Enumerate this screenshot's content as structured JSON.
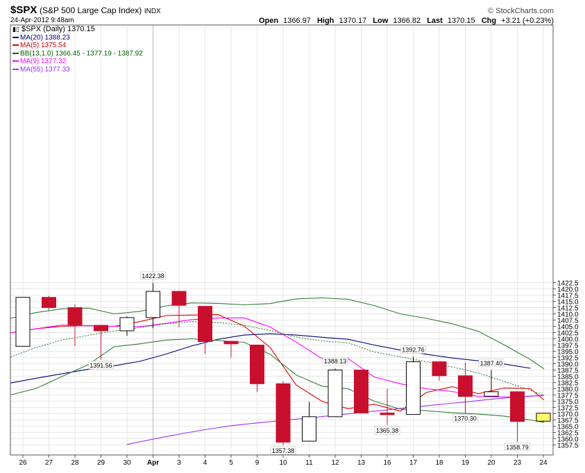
{
  "header": {
    "symbol": "$SPX",
    "name": "(S&P 500 Large Cap Index)",
    "exchange": "INDX",
    "date": "24-Apr-2012 9:48am",
    "brand": "© StockCharts.com",
    "open_label": "Open",
    "open": "1366.97",
    "high_label": "High",
    "high": "1370.17",
    "low_label": "Low",
    "low": "1366.82",
    "last_label": "Last",
    "last": "1370.15",
    "chg_label": "Chg",
    "chg": "+3.21 (+0.23%)"
  },
  "legend": {
    "main": "$SPX (Daily) 1370.15",
    "items": [
      {
        "text": "MA(20) 1388.23",
        "color": "#000080"
      },
      {
        "text": "MA(5) 1375.54",
        "color": "#dd0000"
      },
      {
        "text": "BB(13,1.0) 1366.45 - 1377.19 - 1387.92",
        "color": "#006400"
      },
      {
        "text": "MA(9) 1377.32",
        "color": "#ff00ff"
      },
      {
        "text": "MA(55) 1377.33",
        "color": "#9b30ff"
      }
    ]
  },
  "chart_data": {
    "type": "candlestick",
    "ylim": [
      1355,
      1425
    ],
    "y_ticks": [
      1357.5,
      1360,
      1362.5,
      1365,
      1367.5,
      1370,
      1372.5,
      1375,
      1377.5,
      1380,
      1382.5,
      1385,
      1387.5,
      1390,
      1392.5,
      1395,
      1397.5,
      1400,
      1402.5,
      1405,
      1407.5,
      1410,
      1412.5,
      1415,
      1417.5,
      1420,
      1422.5
    ],
    "x_labels": [
      "26",
      "27",
      "28",
      "29",
      "30",
      "Apr",
      "3",
      "4",
      "5",
      "9",
      "10",
      "11",
      "12",
      "13",
      "16",
      "17",
      "18",
      "19",
      "20",
      "23",
      "24"
    ],
    "candles": [
      {
        "o": 1397.0,
        "h": 1416.6,
        "l": 1397.0,
        "c": 1416.6
      },
      {
        "o": 1416.6,
        "h": 1417.2,
        "l": 1411.5,
        "c": 1412.5
      },
      {
        "o": 1412.5,
        "h": 1413.7,
        "l": 1397.1,
        "c": 1405.5
      },
      {
        "o": 1405.4,
        "h": 1405.4,
        "l": 1391.6,
        "c": 1403.2
      },
      {
        "o": 1403.2,
        "h": 1409.0,
        "l": 1401.2,
        "c": 1408.5
      },
      {
        "o": 1408.5,
        "h": 1422.4,
        "l": 1404.2,
        "c": 1419.0
      },
      {
        "o": 1419.0,
        "h": 1419.0,
        "l": 1404.6,
        "c": 1413.4
      },
      {
        "o": 1413.0,
        "h": 1413.0,
        "l": 1394.0,
        "c": 1398.9
      },
      {
        "o": 1399.0,
        "h": 1399.0,
        "l": 1392.5,
        "c": 1398.0
      },
      {
        "o": 1397.5,
        "h": 1397.5,
        "l": 1378.6,
        "c": 1382.0
      },
      {
        "o": 1382.0,
        "h": 1383.0,
        "l": 1357.4,
        "c": 1358.6
      },
      {
        "o": 1359.0,
        "h": 1374.7,
        "l": 1359.0,
        "c": 1368.8
      },
      {
        "o": 1368.8,
        "h": 1388.1,
        "l": 1368.8,
        "c": 1387.5
      },
      {
        "o": 1387.5,
        "h": 1387.5,
        "l": 1370.1,
        "c": 1370.3
      },
      {
        "o": 1370.3,
        "h": 1380.0,
        "l": 1365.4,
        "c": 1369.6
      },
      {
        "o": 1369.7,
        "h": 1392.8,
        "l": 1369.7,
        "c": 1390.8
      },
      {
        "o": 1390.8,
        "h": 1390.8,
        "l": 1383.2,
        "c": 1385.2
      },
      {
        "o": 1385.2,
        "h": 1390.4,
        "l": 1370.3,
        "c": 1376.9
      },
      {
        "o": 1377.0,
        "h": 1387.4,
        "l": 1377.0,
        "c": 1378.8
      },
      {
        "o": 1378.8,
        "h": 1378.8,
        "l": 1358.8,
        "c": 1366.9
      },
      {
        "o": 1367.0,
        "h": 1370.2,
        "l": 1366.8,
        "c": 1370.2
      }
    ],
    "price_labels": [
      {
        "text": "1422.38",
        "i": 5,
        "v": 1422.38
      },
      {
        "text": "1391.56",
        "i": 3,
        "v": 1391.56
      },
      {
        "text": "1357.38",
        "i": 10,
        "v": 1357.38
      },
      {
        "text": "1388.13",
        "i": 12,
        "v": 1388.13
      },
      {
        "text": "1365.38",
        "i": 14,
        "v": 1365.38
      },
      {
        "text": "1392.76",
        "i": 15,
        "v": 1392.76
      },
      {
        "text": "1370.30",
        "i": 17,
        "v": 1370.3
      },
      {
        "text": "1387.40",
        "i": 18,
        "v": 1387.4
      },
      {
        "text": "1358.79",
        "i": 19,
        "v": 1358.79
      }
    ],
    "series": [
      {
        "name": "MA(20)",
        "color": "#000080",
        "start": -0.5,
        "values": [
          1382.3,
          1384.2,
          1386.0,
          1387.8,
          1389.2,
          1391.0,
          1393.9,
          1397.2,
          1399.8,
          1401.5,
          1402.0,
          1401.5,
          1400.6,
          1399.8,
          1397.5,
          1395.5,
          1393.8,
          1392.3,
          1391.2,
          1389.9,
          1388.2
        ]
      },
      {
        "name": "MA(5)",
        "color": "#dd0000",
        "start": -0.5,
        "values": [
          1402.4,
          1404.0,
          1405.0,
          1405.3,
          1405.0,
          1406.9,
          1409.3,
          1409.5,
          1409.7,
          1405.1,
          1396.5,
          1381.5,
          1374.9,
          1372.0,
          1373.8,
          1371.0,
          1378.5,
          1380.8,
          1378.0,
          1380.3,
          1380.0,
          1375.5
        ]
      },
      {
        "name": "MA(9)",
        "color": "#ff00ff",
        "start": -0.5,
        "values": [
          1402.4,
          1404.0,
          1405.5,
          1405.2,
          1405.0,
          1404.9,
          1406.2,
          1407.7,
          1408.3,
          1408.4,
          1404.7,
          1398.7,
          1392.0,
          1392.0,
          1384.7,
          1382.0,
          1380.0,
          1378.9,
          1376.9,
          1376.7,
          1377.0,
          1377.3
        ]
      },
      {
        "name": "MA(55)",
        "color": "#9b30ff",
        "start": 4,
        "values": [
          1357.7,
          1359.8,
          1361.8,
          1363.6,
          1365.2,
          1366.3,
          1367.3,
          1368.3,
          1369.4,
          1370.5,
          1371.5,
          1372.6,
          1373.7,
          1374.7,
          1375.8,
          1376.7,
          1377.3
        ]
      },
      {
        "name": "BB upper",
        "color": "#2e7d32",
        "start": -0.5,
        "values": [
          1408.2,
          1410.5,
          1412.0,
          1412.3,
          1410.0,
          1411.0,
          1413.2,
          1414.4,
          1414.2,
          1413.6,
          1414.1,
          1416.0,
          1416.4,
          1415.8,
          1413.3,
          1410.0,
          1408.2,
          1406.0,
          1403.0,
          1397.5,
          1391.7,
          1387.9
        ]
      },
      {
        "name": "BB middle",
        "color": "#2e7d32",
        "dashed": true,
        "start": -0.5,
        "values": [
          1392.7,
          1396.5,
          1399.5,
          1401.4,
          1403.1,
          1404.5,
          1406.0,
          1406.9,
          1406.5,
          1405.4,
          1403.4,
          1400.7,
          1399.1,
          1398.4,
          1394.7,
          1392.8,
          1390.8,
          1388.7,
          1386.3,
          1382.9,
          1379.4,
          1377.2
        ]
      },
      {
        "name": "BB lower",
        "color": "#2e7d32",
        "start": -0.5,
        "values": [
          1377.5,
          1380.1,
          1384.9,
          1389.6,
          1396.8,
          1398.0,
          1399.5,
          1400.0,
          1399.3,
          1398.6,
          1393.8,
          1385.5,
          1381.0,
          1380.0,
          1375.0,
          1371.8,
          1371.2,
          1370.4,
          1369.9,
          1369.0,
          1367.5,
          1366.5
        ]
      }
    ]
  }
}
